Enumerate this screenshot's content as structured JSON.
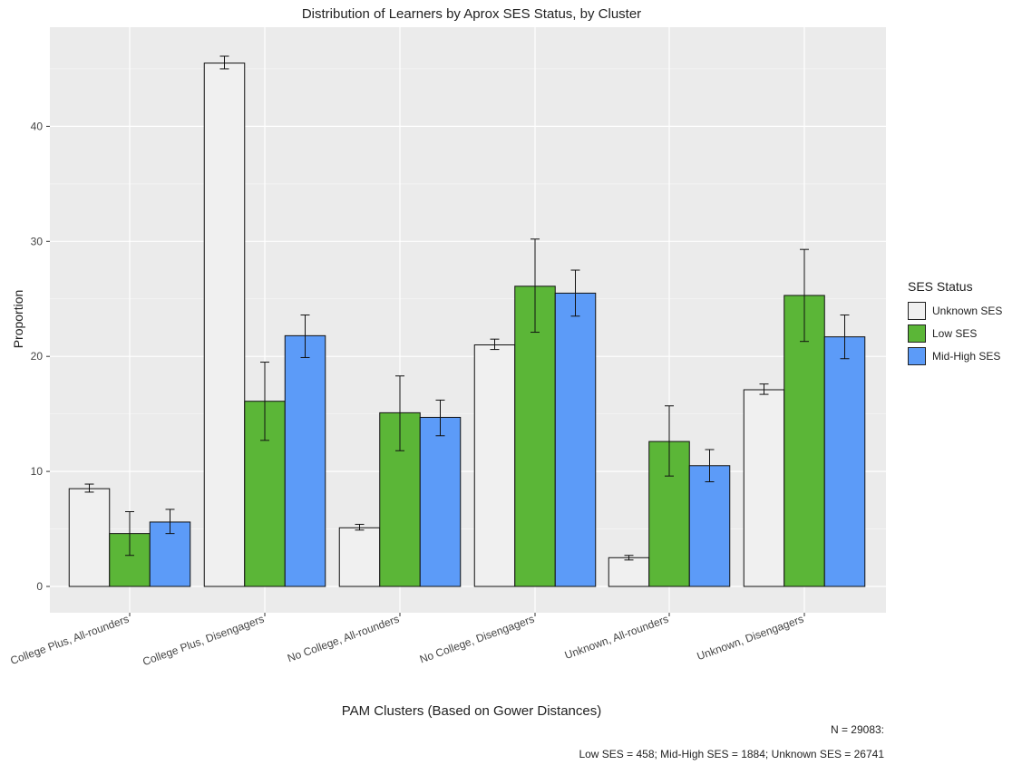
{
  "chart_data": {
    "type": "bar",
    "title": "Distribution of Learners by Aprox SES Status, by Cluster",
    "xlabel": "PAM Clusters (Based on Gower Distances)",
    "ylabel": "Proportion",
    "ylim": [
      -2,
      48
    ],
    "yticks": [
      0,
      10,
      20,
      30,
      40
    ],
    "grid": true,
    "legend_title": "SES Status",
    "legend_position": "right",
    "categories": [
      "College Plus, All-rounders",
      "College Plus, Disengagers",
      "No College, All-rounders",
      "No College, Disengagers",
      "Unknown, All-rounders",
      "Unknown, Disengagers"
    ],
    "series": [
      {
        "name": "Unknown SES",
        "color": "#f0f0f0",
        "values": [
          8.5,
          45.5,
          5.1,
          21.0,
          2.5,
          17.1
        ],
        "err_low": [
          8.2,
          45.0,
          4.9,
          20.6,
          2.3,
          16.7
        ],
        "err_high": [
          8.9,
          46.1,
          5.4,
          21.5,
          2.7,
          17.6
        ]
      },
      {
        "name": "Low SES",
        "color": "#5bb637",
        "values": [
          4.6,
          16.1,
          15.1,
          26.1,
          12.6,
          25.3
        ],
        "err_low": [
          2.7,
          12.7,
          11.8,
          22.1,
          9.6,
          21.3
        ],
        "err_high": [
          6.5,
          19.5,
          18.3,
          30.2,
          15.7,
          29.3
        ]
      },
      {
        "name": "Mid-High SES",
        "color": "#5c9bf8",
        "values": [
          5.6,
          21.8,
          14.7,
          25.5,
          10.5,
          21.7
        ],
        "err_low": [
          4.6,
          19.9,
          13.1,
          23.5,
          9.1,
          19.8
        ],
        "err_high": [
          6.7,
          23.6,
          16.2,
          27.5,
          11.9,
          23.6
        ]
      }
    ],
    "annotations": [
      "N = 29083:",
      "Low SES = 458; Mid-High SES = 1884; Unknown SES = 26741"
    ]
  }
}
